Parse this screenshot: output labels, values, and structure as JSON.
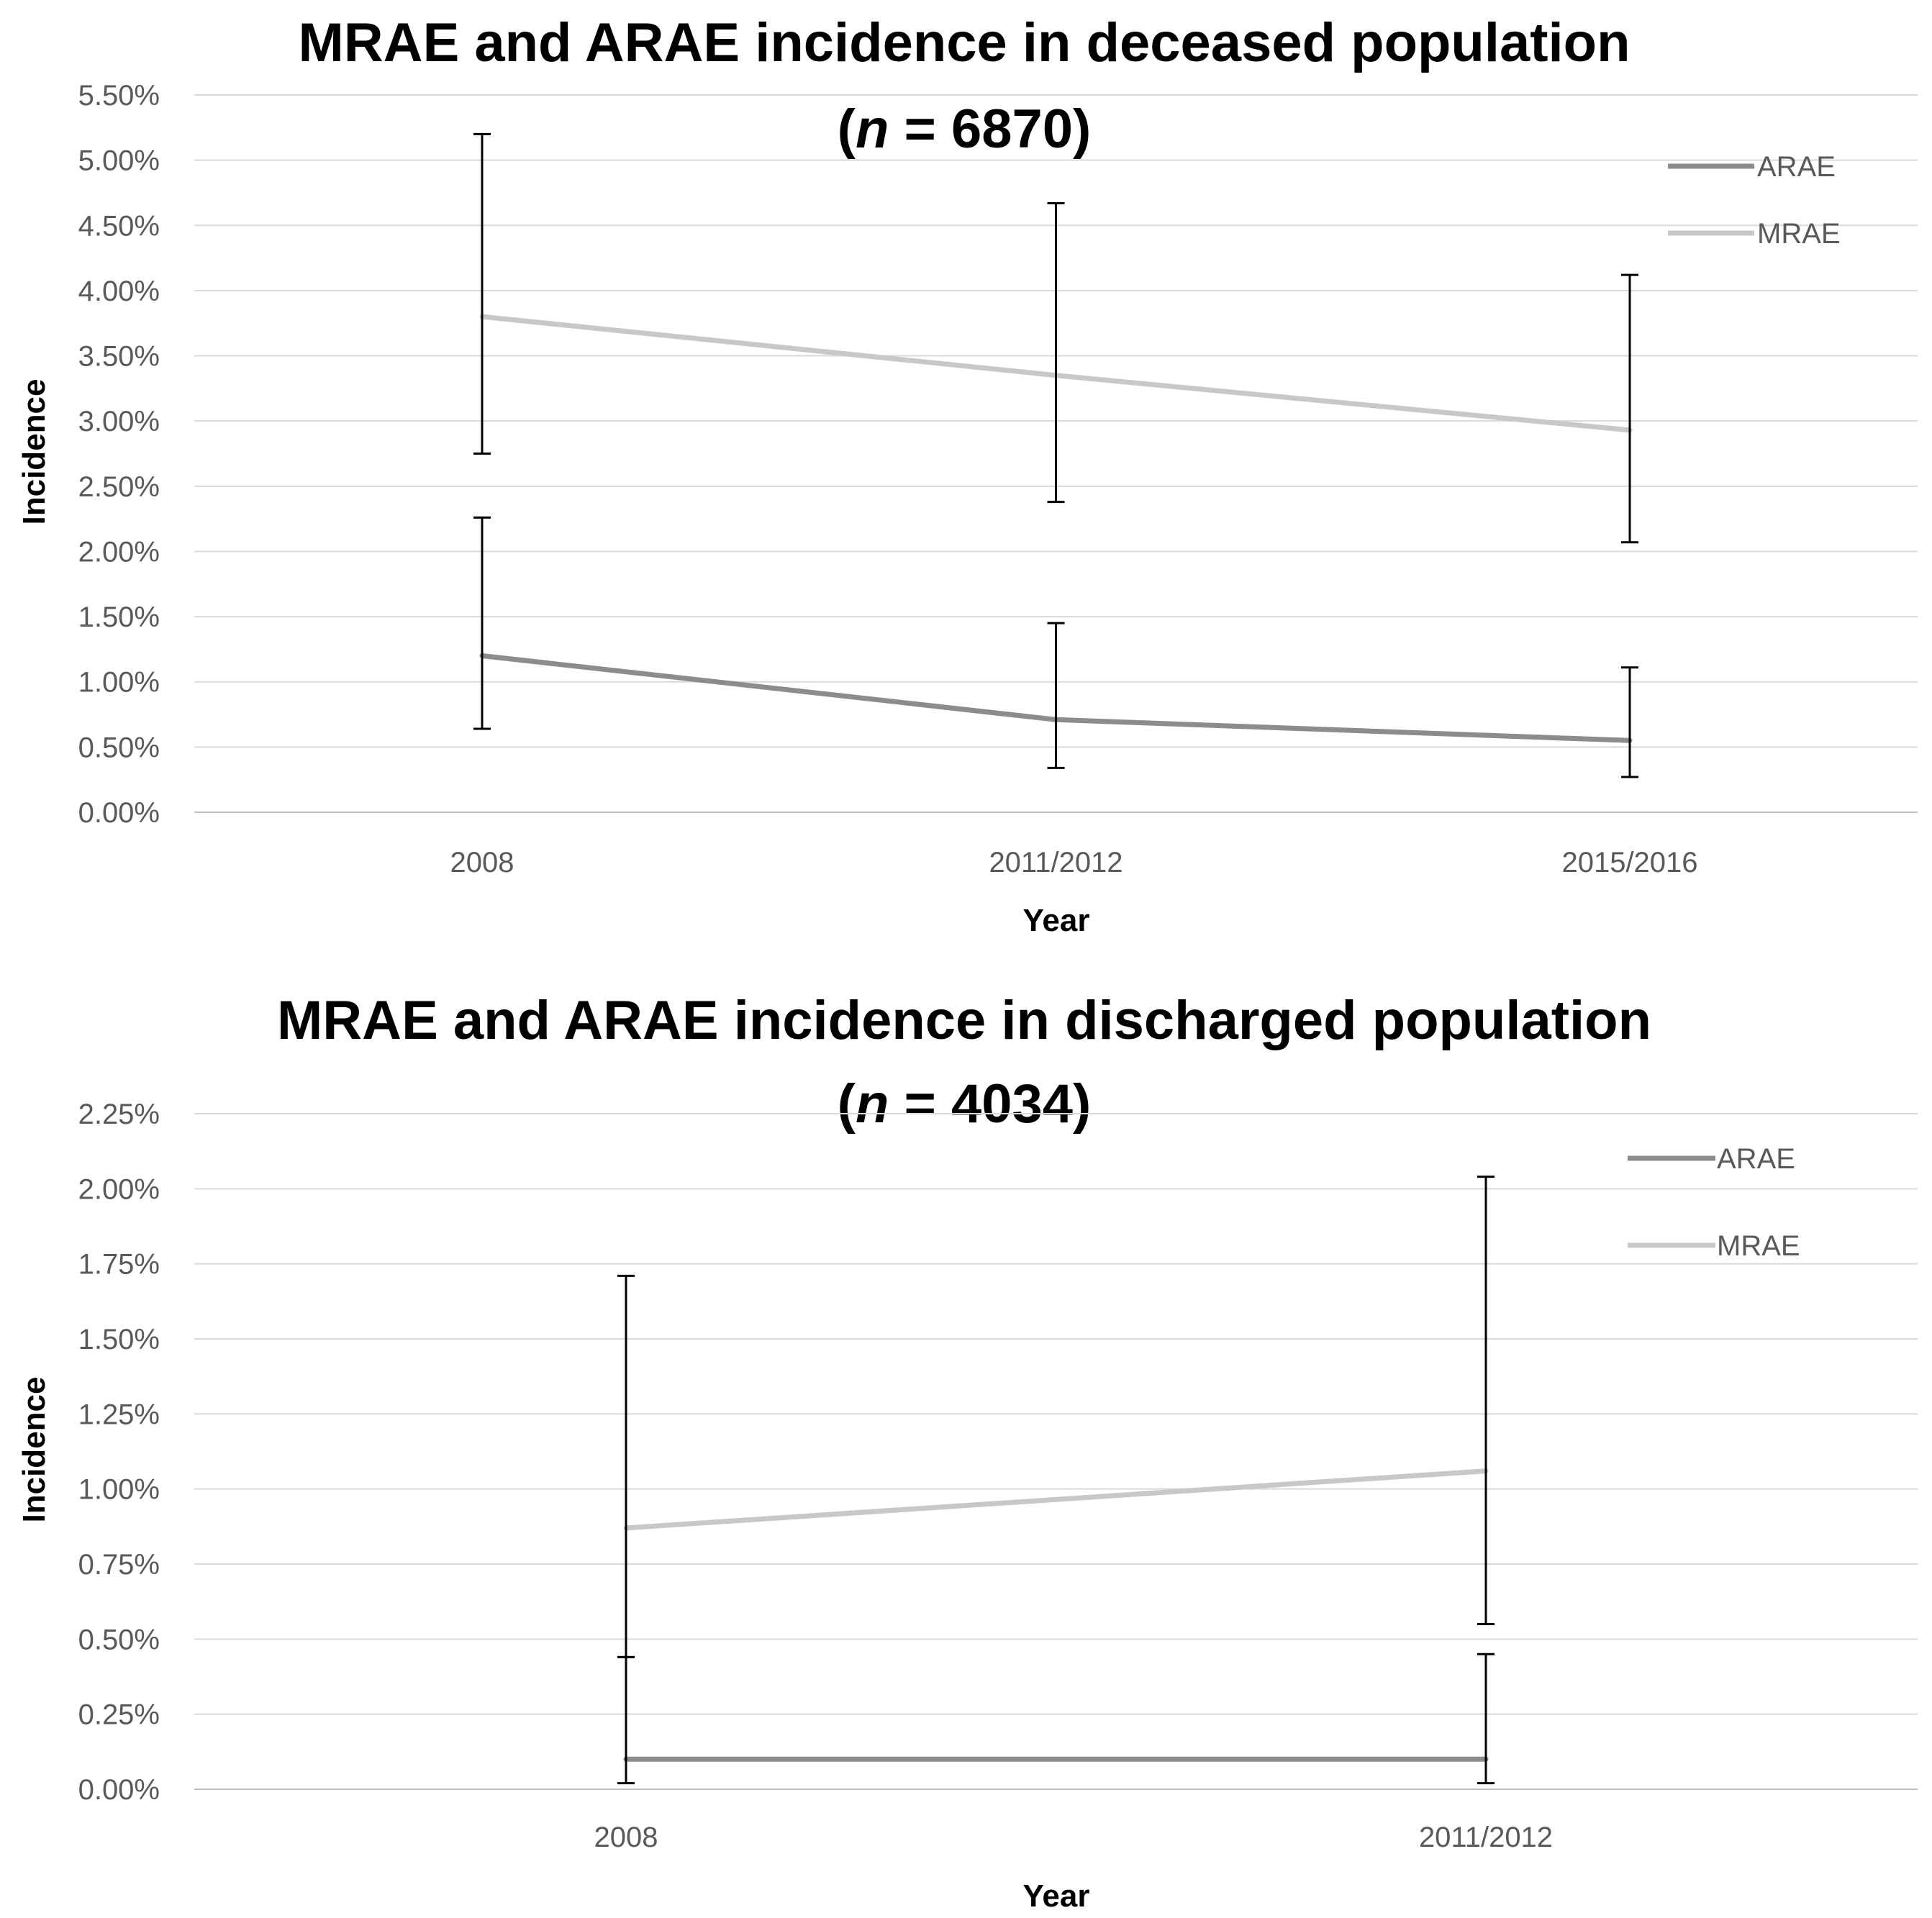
{
  "chart_data": [
    {
      "type": "line",
      "title": "MRAE and ARAE incidence in deceased population",
      "subtitle_prefix": "(",
      "subtitle_var": "n",
      "subtitle_suffix": " = 6870)",
      "xlabel": "Year",
      "ylabel": "Incidence",
      "categories": [
        "2008",
        "2011/2012",
        "2015/2016"
      ],
      "ylim": [
        0,
        5.5
      ],
      "yticks": [
        "0.00%",
        "0.50%",
        "1.00%",
        "1.50%",
        "2.00%",
        "2.50%",
        "3.00%",
        "3.50%",
        "4.00%",
        "4.50%",
        "5.00%",
        "5.50%"
      ],
      "grid": true,
      "legend_position": "top-right",
      "series": [
        {
          "name": "ARAE",
          "color": "#8c8c8c",
          "values": [
            1.2,
            0.71,
            0.55
          ],
          "error_low": [
            0.64,
            0.34,
            0.27
          ],
          "error_high": [
            2.26,
            1.45,
            1.11
          ]
        },
        {
          "name": "MRAE",
          "color": "#c8c8c8",
          "values": [
            3.8,
            3.35,
            2.93
          ],
          "error_low": [
            2.75,
            2.38,
            2.07
          ],
          "error_high": [
            5.2,
            4.67,
            4.12
          ]
        }
      ]
    },
    {
      "type": "line",
      "title": "MRAE and ARAE incidence in discharged population",
      "subtitle_prefix": "(",
      "subtitle_var": "n",
      "subtitle_suffix": " = 4034)",
      "xlabel": "Year",
      "ylabel": "Incidence",
      "categories": [
        "2008",
        "2011/2012"
      ],
      "ylim": [
        0,
        2.25
      ],
      "yticks": [
        "0.00%",
        "0.25%",
        "0.50%",
        "0.75%",
        "1.00%",
        "1.25%",
        "1.50%",
        "1.75%",
        "2.00%",
        "2.25%"
      ],
      "grid": true,
      "legend_position": "top-right",
      "series": [
        {
          "name": "ARAE",
          "color": "#8c8c8c",
          "values": [
            0.1,
            0.1
          ],
          "error_low": [
            0.02,
            0.02
          ],
          "error_high": [
            0.44,
            0.45
          ]
        },
        {
          "name": "MRAE",
          "color": "#c8c8c8",
          "values": [
            0.87,
            1.06
          ],
          "error_low": [
            0.44,
            0.55
          ],
          "error_high": [
            1.71,
            2.04
          ]
        }
      ]
    }
  ]
}
